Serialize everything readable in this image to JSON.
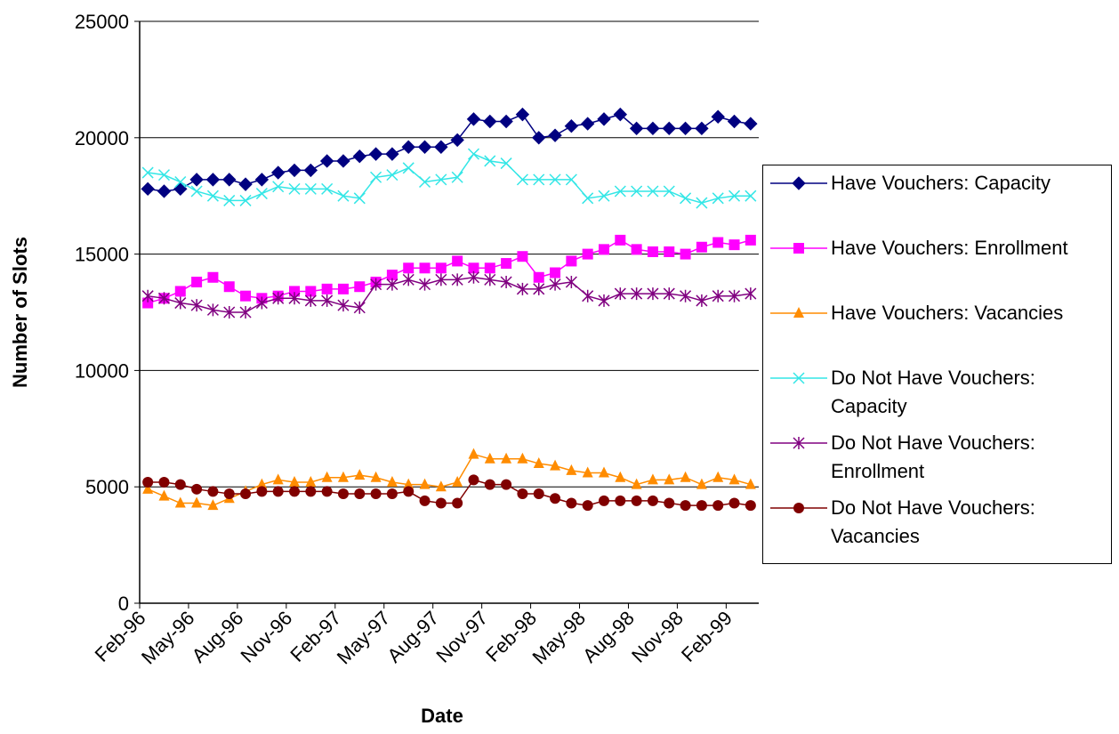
{
  "chart_data": {
    "type": "line",
    "y_label": "Number of Slots",
    "x_label": "Date",
    "categories": [
      "Feb-96",
      null,
      null,
      "May-96",
      null,
      null,
      "Aug-96",
      null,
      null,
      "Nov-96",
      null,
      null,
      "Feb-97",
      null,
      null,
      "May-97",
      null,
      null,
      "Aug-97",
      null,
      null,
      "Nov-97",
      null,
      null,
      "Feb-98",
      null,
      null,
      "May-98",
      null,
      null,
      "Aug-98",
      null,
      null,
      "Nov-98",
      null,
      null,
      "Feb-99",
      null
    ],
    "series": [
      {
        "name": "Have Vouchers: Capacity",
        "color": "#000080",
        "marker": "diamond",
        "values": [
          17800,
          17700,
          17800,
          18200,
          18200,
          18200,
          18000,
          18200,
          18500,
          18600,
          18600,
          19000,
          19000,
          19200,
          19300,
          19300,
          19600,
          19600,
          19600,
          19900,
          20800,
          20700,
          20700,
          21000,
          20000,
          20100,
          20500,
          20600,
          20800,
          21000,
          20400,
          20400,
          20400,
          20400,
          20400,
          20900,
          20700,
          20600
        ]
      },
      {
        "name": "Have Vouchers: Enrollment",
        "color": "#ff00ff",
        "marker": "square",
        "values": [
          12900,
          13100,
          13400,
          13800,
          14000,
          13600,
          13200,
          13100,
          13200,
          13400,
          13400,
          13500,
          13500,
          13600,
          13800,
          14100,
          14400,
          14400,
          14400,
          14700,
          14400,
          14400,
          14600,
          14900,
          14000,
          14200,
          14700,
          15000,
          15200,
          15600,
          15200,
          15100,
          15100,
          15000,
          15300,
          15500,
          15400,
          15600
        ]
      },
      {
        "name": "Have Vouchers: Vacancies",
        "color": "#ff8c00",
        "marker": "triangle",
        "values": [
          4900,
          4600,
          4300,
          4300,
          4200,
          4500,
          4800,
          5100,
          5300,
          5200,
          5200,
          5400,
          5400,
          5500,
          5400,
          5200,
          5100,
          5100,
          5000,
          5200,
          6400,
          6200,
          6200,
          6200,
          6000,
          5900,
          5700,
          5600,
          5600,
          5400,
          5100,
          5300,
          5300,
          5400,
          5100,
          5400,
          5300,
          5100
        ]
      },
      {
        "name": "Do Not Have Vouchers: Capacity",
        "color": "#33e6e6",
        "marker": "x",
        "values": [
          18500,
          18400,
          18100,
          17700,
          17500,
          17300,
          17300,
          17600,
          17900,
          17800,
          17800,
          17800,
          17500,
          17400,
          18300,
          18400,
          18700,
          18100,
          18200,
          18300,
          19300,
          19000,
          18900,
          18200,
          18200,
          18200,
          18200,
          17400,
          17500,
          17700,
          17700,
          17700,
          17700,
          17400,
          17200,
          17400,
          17500,
          17500
        ]
      },
      {
        "name": "Do Not Have Vouchers: Enrollment",
        "color": "#800080",
        "marker": "star",
        "values": [
          13200,
          13100,
          12900,
          12800,
          12600,
          12500,
          12500,
          12900,
          13100,
          13100,
          13000,
          13000,
          12800,
          12700,
          13700,
          13700,
          13900,
          13700,
          13900,
          13900,
          14000,
          13900,
          13800,
          13500,
          13500,
          13700,
          13800,
          13200,
          13000,
          13300,
          13300,
          13300,
          13300,
          13200,
          13000,
          13200,
          13200,
          13300
        ]
      },
      {
        "name": "Do Not Have Vouchers: Vacancies",
        "color": "#800000",
        "marker": "circle",
        "values": [
          5200,
          5200,
          5100,
          4900,
          4800,
          4700,
          4700,
          4800,
          4800,
          4800,
          4800,
          4800,
          4700,
          4700,
          4700,
          4700,
          4800,
          4400,
          4300,
          4300,
          5300,
          5100,
          5100,
          4700,
          4700,
          4500,
          4300,
          4200,
          4400,
          4400,
          4400,
          4400,
          4300,
          4200,
          4200,
          4200,
          4300,
          4200
        ]
      }
    ],
    "ylim": [
      0,
      25000
    ],
    "yticks": [
      0,
      5000,
      10000,
      15000,
      20000,
      25000
    ],
    "grid": true,
    "legend": "right"
  }
}
